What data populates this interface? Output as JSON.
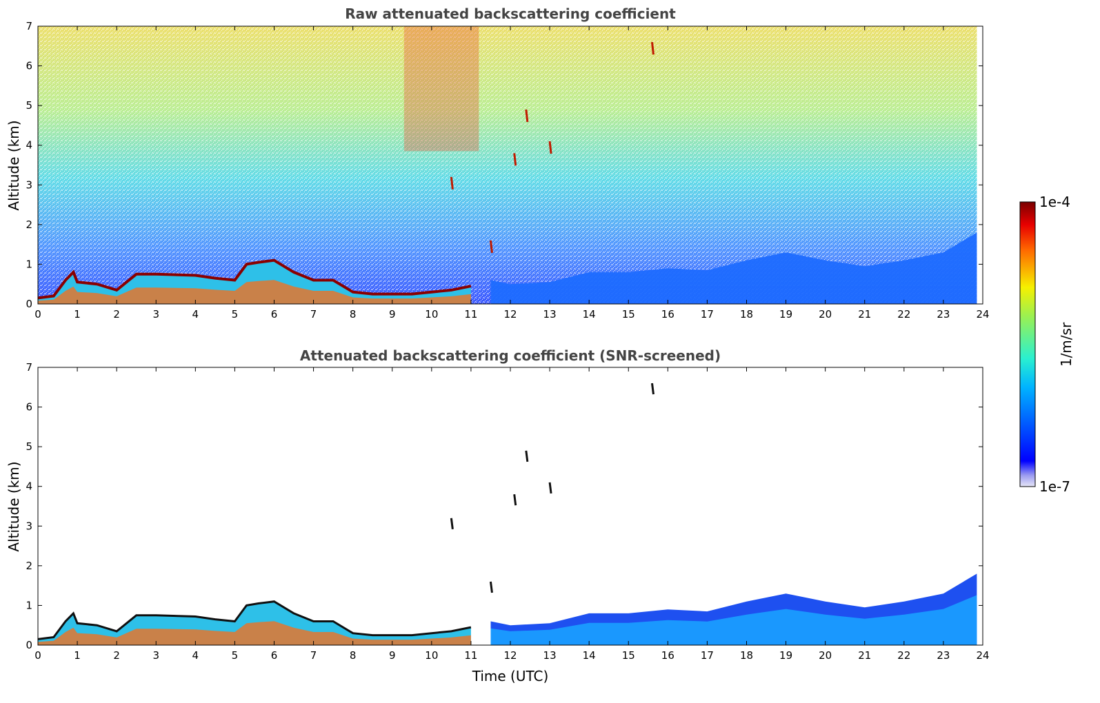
{
  "chart_data": [
    {
      "type": "heatmap",
      "title": "Raw attenuated backscattering coefficient",
      "xlabel": "",
      "ylabel": "Altitude (km)",
      "xlim": [
        0,
        24
      ],
      "ylim": [
        0,
        7
      ],
      "xticks": [
        "0",
        "1",
        "2",
        "3",
        "4",
        "5",
        "6",
        "7",
        "8",
        "9",
        "10",
        "11",
        "12",
        "13",
        "14",
        "15",
        "16",
        "17",
        "18",
        "19",
        "20",
        "21",
        "22",
        "23",
        "24"
      ],
      "yticks": [
        "0",
        "1",
        "2",
        "3",
        "4",
        "5",
        "6",
        "7"
      ],
      "colormap": "jet",
      "data_extent_x": [
        0,
        23.85
      ],
      "features": [
        {
          "name": "cloud layer top (km) vs time (UTC)",
          "x": [
            0,
            0.4,
            0.7,
            0.9,
            1.0,
            1.5,
            2.0,
            2.5,
            3.0,
            4.0,
            4.5,
            5.0,
            5.3,
            5.6,
            6.0,
            6.5,
            7.0,
            7.5,
            8.0,
            8.5,
            9.0,
            9.5,
            10.0,
            10.5,
            11.0
          ],
          "y": [
            0.15,
            0.2,
            0.6,
            0.8,
            0.55,
            0.5,
            0.35,
            0.75,
            0.75,
            0.72,
            0.65,
            0.6,
            1.0,
            1.05,
            1.1,
            0.8,
            0.6,
            0.6,
            0.3,
            0.25,
            0.25,
            0.25,
            0.3,
            0.35,
            0.45
          ]
        },
        {
          "name": "aerosol boundary layer top (km)",
          "x": [
            11.5,
            12,
            13,
            14,
            15,
            16,
            17,
            18,
            19,
            20,
            21,
            22,
            23,
            23.85
          ],
          "y": [
            0.6,
            0.5,
            0.55,
            0.8,
            0.8,
            0.9,
            0.85,
            1.1,
            1.3,
            1.1,
            0.95,
            1.1,
            1.3,
            1.8
          ]
        },
        {
          "name": "cirrus streaks",
          "x": [
            10.5,
            11.5,
            12.1,
            12.4,
            13.0,
            15.6
          ],
          "y": [
            3.2,
            1.6,
            3.8,
            4.9,
            4.1,
            6.6
          ]
        }
      ]
    },
    {
      "type": "heatmap",
      "title": "Attenuated backscattering coefficient (SNR-screened)",
      "xlabel": "Time (UTC)",
      "ylabel": "Altitude (km)",
      "xlim": [
        0,
        24
      ],
      "ylim": [
        0,
        7
      ],
      "xticks": [
        "0",
        "1",
        "2",
        "3",
        "4",
        "5",
        "6",
        "7",
        "8",
        "9",
        "10",
        "11",
        "12",
        "13",
        "14",
        "15",
        "16",
        "17",
        "18",
        "19",
        "20",
        "21",
        "22",
        "23",
        "24"
      ],
      "yticks": [
        "0",
        "1",
        "2",
        "3",
        "4",
        "5",
        "6",
        "7"
      ],
      "colormap": "jet",
      "data_extent_x": [
        0,
        23.85
      ]
    }
  ],
  "colorbar": {
    "max_label": "1e-4",
    "min_label": "1e-7",
    "unit": "1/m/sr",
    "scale": "log",
    "range": [
      1e-07,
      0.0001
    ]
  }
}
